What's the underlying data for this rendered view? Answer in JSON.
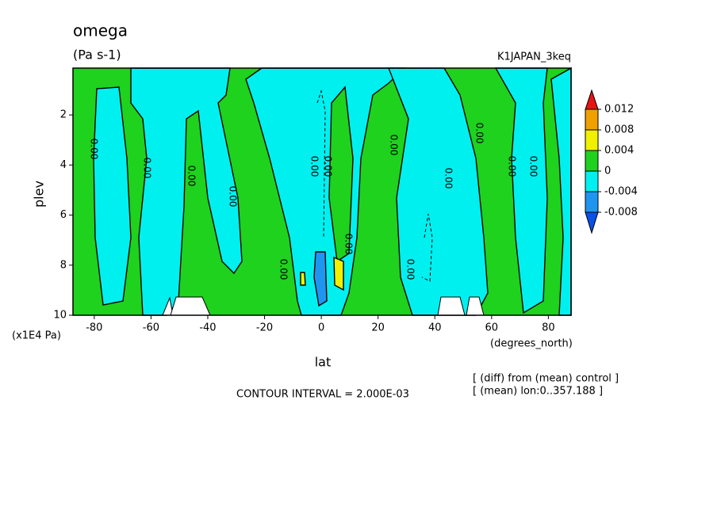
{
  "chart_data": {
    "type": "contour",
    "title": "omega",
    "subtitle": "(Pa s-1)",
    "dataset": "K1JAPAN_3keq",
    "xlabel": "lat",
    "xunit": "(degrees_north)",
    "ylabel": "plev",
    "yunit": "(x1E4 Pa)",
    "xlim": [
      -87.5,
      88
    ],
    "xticks": [
      -80,
      -60,
      -40,
      -20,
      0,
      20,
      40,
      60,
      80
    ],
    "ylim": [
      10,
      0.13
    ],
    "yticks": [
      2,
      4,
      6,
      8,
      10
    ],
    "contour_labels": [
      "0.00",
      "0.00",
      "0.00",
      "0.00",
      "0.00",
      "0.00",
      "0.00",
      "0.00",
      "0.00",
      "0.00",
      "0.00",
      "0.00",
      "0.00",
      "0.00"
    ],
    "contour_interval": "CONTOUR INTERVAL = 2.000E-03",
    "notes": [
      "[ (diff) from (mean) control ]",
      "[ (mean) lon:0..357.188 ]"
    ],
    "colorbar": {
      "levels": [
        -0.008,
        -0.004,
        0,
        0.004,
        0.008,
        0.012
      ],
      "colors": [
        "#0a50e6",
        "#1e96f0",
        "#00f0f0",
        "#1ed21e",
        "#f0f000",
        "#f0a000",
        "#e61414"
      ]
    }
  }
}
